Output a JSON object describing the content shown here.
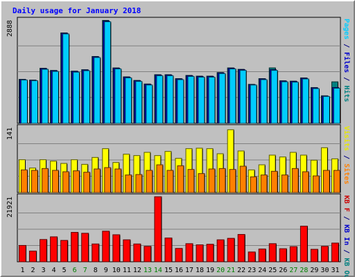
{
  "chart_data": {
    "type": "bar",
    "title": "Daily usage for January 2018",
    "days": [
      "1",
      "2",
      "3",
      "4",
      "5",
      "6",
      "7",
      "8",
      "9",
      "10",
      "11",
      "12",
      "13",
      "14",
      "15",
      "16",
      "17",
      "18",
      "19",
      "20",
      "21",
      "22",
      "23",
      "24",
      "25",
      "26",
      "27",
      "28",
      "29",
      "30",
      "31"
    ],
    "weekend_days": [
      "6",
      "7",
      "13",
      "14",
      "20",
      "21",
      "27",
      "28"
    ],
    "panels": [
      {
        "name": "top",
        "ymax": 2888,
        "ymax_label": "2888",
        "right_labels": [
          {
            "text": "Pages",
            "color": "#00ccff"
          },
          {
            "text": " / ",
            "color": "#000080"
          },
          {
            "text": "Files",
            "color": "#0000cc"
          },
          {
            "text": " / ",
            "color": "#000080"
          },
          {
            "text": "Hits",
            "color": "#008080"
          }
        ],
        "series": [
          {
            "name": "Hits",
            "color": "#008080",
            "values": [
              1230,
              1210,
              1540,
              1480,
              2530,
              1460,
              1500,
              1870,
              2880,
              1550,
              1300,
              1200,
              1100,
              1360,
              1360,
              1250,
              1340,
              1320,
              1320,
              1420,
              1550,
              1510,
              1090,
              1250,
              1550,
              1190,
              1180,
              1270,
              1000,
              770,
              1160
            ]
          },
          {
            "name": "Files",
            "color": "#0000cc",
            "values": [
              1220,
              1200,
              1530,
              1470,
              2520,
              1450,
              1490,
              1860,
              2860,
              1540,
              1290,
              1190,
              1090,
              1350,
              1350,
              1240,
              1330,
              1310,
              1310,
              1410,
              1540,
              1500,
              1080,
              1240,
              1500,
              1180,
              1170,
              1260,
              990,
              760,
              1000
            ]
          },
          {
            "name": "Pages",
            "color": "#00ccff",
            "values": [
              1210,
              1190,
              1510,
              1450,
              2500,
              1430,
              1470,
              1840,
              2840,
              1520,
              1270,
              1170,
              1070,
              1330,
              1330,
              1220,
              1310,
              1290,
              1290,
              1390,
              1520,
              1480,
              1070,
              1220,
              1480,
              1160,
              1150,
              1240,
              970,
              750,
              980
            ]
          }
        ]
      },
      {
        "name": "middle",
        "ymax": 141,
        "ymax_label": "141",
        "right_labels": [
          {
            "text": "Visits",
            "color": "#e8e800"
          },
          {
            "text": " / ",
            "color": "#000080"
          },
          {
            "text": "Sites",
            "color": "#ff8000"
          }
        ],
        "series": [
          {
            "name": "Visits",
            "color": "#ffff00",
            "values": [
              71,
              53,
              71,
              68,
              63,
              71,
              61,
              76,
              95,
              65,
              83,
              80,
              87,
              80,
              89,
              74,
              95,
              96,
              95,
              84,
              136,
              90,
              49,
              60,
              81,
              77,
              87,
              81,
              70,
              97,
              73
            ]
          },
          {
            "name": "Sites",
            "color": "#ff8000",
            "values": [
              49,
              48,
              52,
              48,
              45,
              47,
              44,
              51,
              54,
              51,
              38,
              39,
              48,
              60,
              48,
              58,
              50,
              41,
              51,
              52,
              50,
              57,
              34,
              38,
              46,
              38,
              52,
              45,
              36,
              48,
              48
            ]
          }
        ]
      },
      {
        "name": "bottom",
        "ymax": 21921,
        "ymax_label": "21921",
        "right_labels": [
          {
            "text": "KB F",
            "color": "#cc0000"
          },
          {
            "text": " / ",
            "color": "#000080"
          },
          {
            "text": "KB In",
            "color": "#0000cc"
          },
          {
            "text": " / ",
            "color": "#000080"
          },
          {
            "text": "KB Out",
            "color": "#008080"
          }
        ],
        "series": [
          {
            "name": "KB F",
            "color": "#ff0000",
            "values": [
              5500,
              3600,
              7500,
              8400,
              7200,
              9900,
              9600,
              6000,
              10300,
              9100,
              7400,
              6000,
              5200,
              21900,
              8000,
              4500,
              6100,
              5700,
              5900,
              7400,
              7900,
              9200,
              3300,
              4300,
              6100,
              4400,
              5100,
              12000,
              4200,
              5200,
              6300
            ]
          }
        ]
      }
    ]
  }
}
